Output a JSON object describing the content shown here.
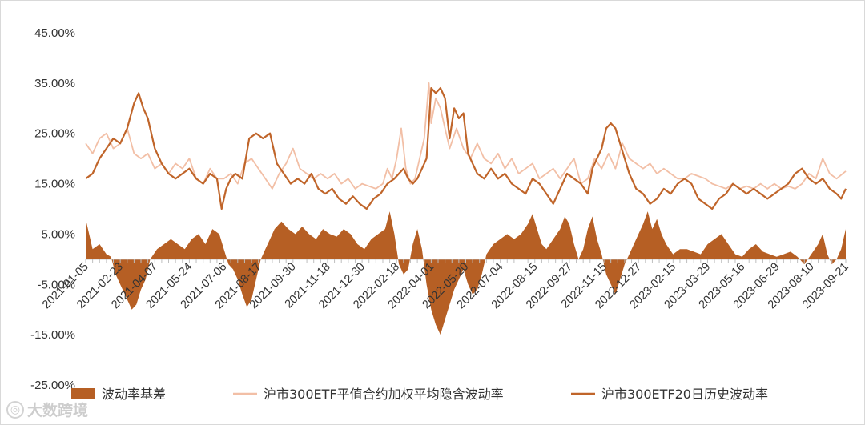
{
  "chart_data": {
    "type": "line",
    "y_axis": {
      "ticks": [
        "45.00%",
        "35.00%",
        "25.00%",
        "15.00%",
        "5.00%",
        "-5.00%",
        "-15.00%",
        "-25.00%"
      ],
      "tick_values": [
        45,
        35,
        25,
        15,
        5,
        -5,
        -15,
        -25
      ],
      "ylim": [
        -25,
        45
      ]
    },
    "x_axis": {
      "tick_labels": [
        "2021-01-05",
        "2021-02-23",
        "2021-04-07",
        "2021-05-24",
        "2021-07-06",
        "2021-08-17",
        "2021-09-30",
        "2021-11-18",
        "2021-12-30",
        "2022-02-18",
        "2022-04-01",
        "2022-05-20",
        "2022-07-04",
        "2022-08-15",
        "2022-09-27",
        "2022-11-15",
        "2022-12-27",
        "2023-02-15",
        "2023-03-29",
        "2023-05-16",
        "2023-06-29",
        "2023-08-10",
        "2023-09-21"
      ],
      "tick_positions": [
        0,
        30,
        60,
        90,
        120,
        150,
        180,
        210,
        240,
        270,
        300,
        330,
        360,
        390,
        420,
        450,
        480,
        510,
        540,
        570,
        600,
        630,
        660
      ],
      "xlim": [
        0,
        660
      ]
    },
    "series": [
      {
        "name": "波动率基差",
        "kind": "area",
        "color": "#b65f24",
        "x": [
          0,
          6,
          12,
          18,
          22,
          26,
          30,
          36,
          40,
          44,
          48,
          52,
          56,
          62,
          68,
          74,
          80,
          86,
          92,
          98,
          104,
          110,
          116,
          120,
          124,
          128,
          132,
          136,
          140,
          144,
          148,
          152,
          156,
          160,
          164,
          170,
          176,
          182,
          188,
          194,
          200,
          206,
          212,
          218,
          224,
          230,
          236,
          242,
          248,
          254,
          260,
          264,
          268,
          272,
          276,
          280,
          284,
          288,
          292,
          296,
          300,
          304,
          308,
          312,
          316,
          320,
          324,
          328,
          332,
          336,
          340,
          344,
          348,
          354,
          360,
          366,
          372,
          378,
          384,
          388,
          392,
          396,
          400,
          406,
          412,
          416,
          420,
          424,
          428,
          432,
          436,
          440,
          444,
          448,
          452,
          456,
          460,
          464,
          468,
          474,
          480,
          484,
          488,
          492,
          496,
          500,
          504,
          510,
          516,
          522,
          528,
          534,
          540,
          546,
          552,
          558,
          564,
          570,
          576,
          582,
          588,
          594,
          600,
          606,
          612,
          618,
          624,
          630,
          636,
          640,
          644,
          648,
          652,
          656,
          660
        ],
        "y": [
          8.0,
          2.0,
          3.0,
          1.0,
          0.5,
          -3.0,
          -5.0,
          -8.0,
          -10.0,
          -9.0,
          -6.0,
          -4.0,
          0.0,
          2.0,
          3.0,
          4.0,
          3.0,
          2.0,
          4.0,
          5.0,
          3.0,
          6.0,
          5.0,
          2.0,
          -1.0,
          -2.0,
          -4.0,
          -7.0,
          -9.5,
          -8.0,
          -4.0,
          0.0,
          2.0,
          4.0,
          6.0,
          7.5,
          6.0,
          5.0,
          6.5,
          5.0,
          4.0,
          6.0,
          5.0,
          4.5,
          6.0,
          5.0,
          3.0,
          2.0,
          4.0,
          5.0,
          6.0,
          9.5,
          5.0,
          -1.0,
          -3.0,
          -2.0,
          3.0,
          6.0,
          2.0,
          -5.0,
          -10.0,
          -13.0,
          -15.0,
          -12.0,
          -9.0,
          -6.0,
          -4.0,
          -2.0,
          -5.0,
          -7.0,
          -6.0,
          -3.0,
          1.0,
          3.0,
          4.0,
          5.0,
          4.0,
          5.0,
          7.0,
          9.0,
          6.0,
          3.0,
          2.0,
          4.0,
          6.0,
          8.5,
          7.0,
          3.0,
          0.0,
          2.0,
          6.0,
          8.5,
          4.0,
          1.0,
          -3.0,
          -5.0,
          -7.0,
          -4.0,
          -1.0,
          2.0,
          5.0,
          7.0,
          9.5,
          6.0,
          8.0,
          5.0,
          3.0,
          1.0,
          2.0,
          2.0,
          1.5,
          1.0,
          3.0,
          4.0,
          5.0,
          3.0,
          1.0,
          0.5,
          2.0,
          3.0,
          1.5,
          1.0,
          0.5,
          1.0,
          1.5,
          0.5,
          -1.0,
          1.0,
          3.0,
          5.0,
          1.0,
          -1.0,
          0.0,
          2.0,
          6.0
        ]
      },
      {
        "name": "沪市300ETF平值合约加权平均隐含波动率",
        "kind": "line",
        "color": "#f2bfa6",
        "x": [
          0,
          6,
          12,
          18,
          24,
          30,
          36,
          42,
          48,
          54,
          60,
          66,
          72,
          78,
          84,
          90,
          96,
          102,
          108,
          114,
          120,
          126,
          132,
          138,
          144,
          150,
          156,
          162,
          168,
          174,
          180,
          186,
          192,
          198,
          204,
          210,
          216,
          222,
          228,
          234,
          240,
          246,
          252,
          258,
          262,
          266,
          270,
          274,
          278,
          282,
          286,
          290,
          294,
          298,
          300,
          304,
          308,
          312,
          316,
          322,
          328,
          334,
          340,
          346,
          352,
          358,
          364,
          370,
          376,
          382,
          388,
          394,
          400,
          406,
          412,
          418,
          424,
          430,
          436,
          442,
          448,
          454,
          460,
          466,
          472,
          478,
          484,
          490,
          496,
          502,
          508,
          514,
          520,
          526,
          532,
          538,
          544,
          550,
          556,
          562,
          568,
          574,
          580,
          586,
          592,
          598,
          604,
          610,
          616,
          622,
          628,
          634,
          640,
          646,
          652,
          660
        ],
        "y": [
          23.0,
          21.0,
          24.0,
          25.0,
          22.0,
          23.0,
          26.0,
          21.0,
          20.0,
          21.0,
          18.0,
          19.0,
          17.0,
          19.0,
          18.0,
          20.0,
          16.0,
          15.0,
          18.0,
          16.0,
          16.0,
          17.0,
          15.0,
          19.0,
          20.0,
          18.0,
          16.0,
          14.0,
          17.0,
          19.0,
          22.0,
          18.0,
          17.0,
          16.0,
          17.0,
          16.0,
          17.0,
          15.0,
          16.0,
          14.0,
          15.0,
          14.5,
          14.0,
          15.0,
          18.0,
          16.0,
          20.0,
          26.0,
          18.0,
          15.0,
          16.0,
          20.0,
          24.0,
          35.0,
          27.0,
          32.0,
          30.0,
          26.0,
          22.0,
          26.0,
          22.0,
          20.0,
          23.0,
          20.0,
          19.0,
          21.0,
          18.0,
          20.0,
          17.0,
          18.0,
          19.0,
          16.0,
          17.0,
          18.0,
          16.0,
          18.0,
          20.0,
          15.0,
          16.0,
          20.0,
          18.0,
          21.0,
          18.0,
          23.0,
          20.0,
          19.0,
          18.0,
          19.0,
          17.0,
          18.0,
          17.0,
          16.0,
          16.0,
          17.0,
          16.5,
          16.0,
          15.0,
          14.5,
          14.0,
          15.0,
          14.0,
          14.5,
          14.0,
          15.0,
          14.0,
          15.0,
          14.0,
          14.5,
          14.0,
          15.0,
          17.0,
          16.0,
          20.0,
          17.0,
          16.0,
          17.5
        ]
      },
      {
        "name": "沪市300ETF20日历史波动率",
        "kind": "line",
        "color": "#c0652a",
        "x": [
          0,
          6,
          12,
          18,
          24,
          30,
          36,
          42,
          46,
          50,
          54,
          60,
          66,
          72,
          78,
          84,
          90,
          96,
          102,
          108,
          114,
          118,
          122,
          126,
          130,
          136,
          142,
          148,
          154,
          160,
          166,
          172,
          178,
          184,
          190,
          196,
          202,
          208,
          214,
          220,
          226,
          232,
          238,
          244,
          250,
          256,
          262,
          268,
          272,
          276,
          280,
          284,
          288,
          292,
          296,
          300,
          304,
          308,
          312,
          316,
          320,
          324,
          328,
          332,
          336,
          340,
          346,
          352,
          358,
          364,
          370,
          376,
          382,
          388,
          394,
          400,
          406,
          412,
          418,
          424,
          430,
          436,
          440,
          444,
          448,
          452,
          456,
          460,
          464,
          468,
          472,
          478,
          484,
          490,
          496,
          502,
          508,
          514,
          520,
          526,
          532,
          538,
          544,
          550,
          556,
          562,
          568,
          574,
          580,
          586,
          592,
          598,
          604,
          610,
          616,
          622,
          628,
          634,
          640,
          646,
          652,
          656,
          660
        ],
        "y": [
          16.0,
          17.0,
          20.0,
          22.0,
          24.0,
          23.0,
          26.0,
          31.0,
          33.0,
          30.0,
          28.0,
          22.0,
          19.0,
          17.0,
          16.0,
          17.0,
          18.0,
          16.0,
          15.0,
          17.0,
          16.0,
          10.0,
          14.0,
          16.0,
          17.0,
          16.0,
          24.0,
          25.0,
          24.0,
          25.0,
          19.0,
          17.0,
          15.0,
          16.0,
          15.0,
          17.0,
          14.0,
          13.0,
          14.0,
          12.0,
          11.0,
          12.5,
          11.0,
          10.0,
          12.0,
          13.0,
          15.0,
          16.0,
          17.0,
          18.0,
          16.0,
          15.0,
          16.0,
          18.0,
          20.0,
          34.0,
          33.0,
          34.0,
          32.0,
          24.0,
          30.0,
          28.0,
          29.0,
          21.0,
          19.0,
          17.0,
          16.0,
          18.0,
          16.0,
          17.0,
          15.0,
          14.0,
          13.0,
          16.0,
          15.0,
          13.0,
          11.0,
          14.0,
          17.0,
          16.0,
          15.0,
          13.0,
          18.0,
          20.0,
          22.0,
          26.0,
          27.0,
          26.0,
          23.0,
          20.0,
          17.0,
          14.0,
          13.0,
          11.0,
          12.0,
          14.0,
          13.0,
          15.0,
          16.0,
          15.0,
          12.0,
          11.0,
          10.0,
          12.0,
          13.0,
          15.0,
          14.0,
          13.0,
          14.0,
          13.0,
          12.0,
          13.0,
          14.0,
          15.0,
          17.0,
          18.0,
          16.0,
          15.0,
          16.0,
          14.0,
          13.0,
          12.0,
          14.0
        ]
      }
    ],
    "legend": {
      "placement": "bottom",
      "entries": [
        {
          "label": "波动率基差",
          "kind": "area"
        },
        {
          "label": "沪市300ETF平值合约加权平均隐含波动率",
          "kind": "line"
        },
        {
          "label": "沪市300ETF20日历史波动率",
          "kind": "line"
        }
      ]
    },
    "grid": false
  },
  "watermark": {
    "text": "大数跨境",
    "icon": "logo-icon"
  }
}
